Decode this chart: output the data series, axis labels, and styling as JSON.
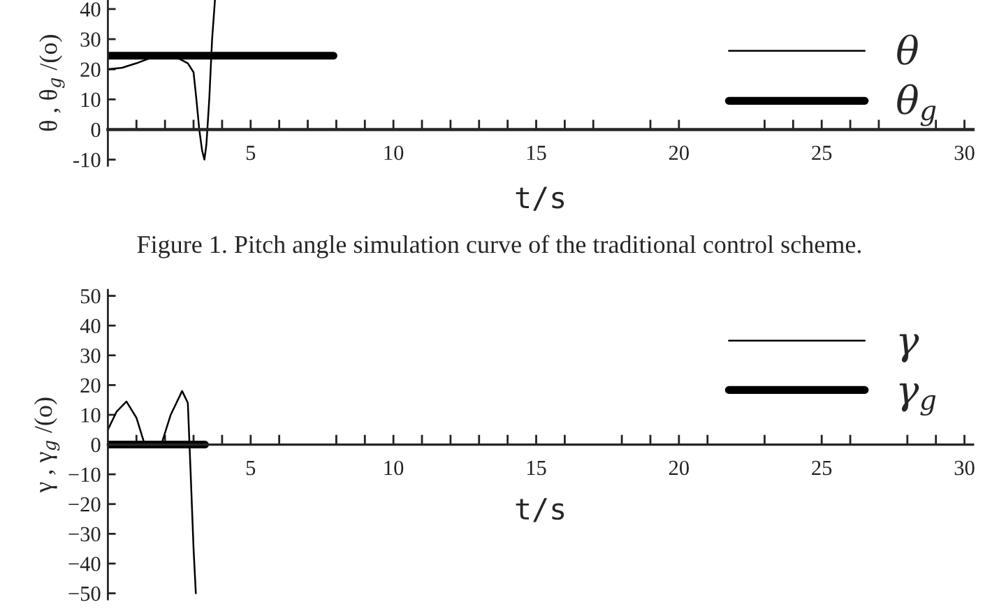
{
  "chart_data": [
    {
      "type": "line",
      "xlabel": "t/s",
      "ylabel": "θ , θ$_{g}$ /(o)",
      "legend": "top right",
      "grid": false,
      "marker": "none",
      "line_style": "solid",
      "xlim": [
        0,
        30.3
      ],
      "ylim": [
        -12,
        43
      ],
      "xticks": [
        {
          "value": 1,
          "label": null
        },
        {
          "value": 2,
          "label": null
        },
        {
          "value": 3,
          "label": null
        },
        {
          "value": 4,
          "label": null
        },
        5,
        {
          "value": 6,
          "label": null
        },
        {
          "value": 7,
          "label": null
        },
        {
          "value": 8,
          "label": null
        },
        {
          "value": 9,
          "label": null
        },
        10,
        {
          "value": 11,
          "label": null
        },
        {
          "value": 12,
          "label": null
        },
        {
          "value": 13,
          "label": null
        },
        {
          "value": 14,
          "label": null
        },
        15,
        {
          "value": 16,
          "label": null
        },
        {
          "value": 17,
          "label": null
        },
        {
          "value": 19,
          "label": null
        },
        20,
        {
          "value": 23,
          "label": null
        },
        {
          "value": 24,
          "label": null
        },
        25,
        {
          "value": 26,
          "label": null
        },
        {
          "value": 27,
          "label": null
        },
        {
          "value": 29,
          "label": null
        },
        30
      ],
      "yticks": [
        -10,
        0,
        10,
        20,
        30,
        40
      ],
      "series": [
        {
          "name": "θ",
          "color": "#000000",
          "x": [
            0,
            0.5,
            1,
            1.5,
            2,
            2.5,
            2.8,
            3.0,
            3.1,
            3.2,
            3.3,
            3.38,
            3.45,
            3.55,
            3.65,
            3.75
          ],
          "values": [
            20,
            20.5,
            22,
            23.8,
            24,
            23.5,
            22,
            19,
            10,
            0,
            -7,
            -10,
            -5,
            10,
            30,
            43
          ]
        },
        {
          "name": "θ$_{g}$",
          "color": "#000000",
          "x": [
            0,
            7.9
          ],
          "values": [
            24.5,
            24.5
          ]
        }
      ],
      "annotations": [
        "Figure 1. Pitch angle simulation curve of the traditional control scheme."
      ]
    },
    {
      "type": "line",
      "xlabel": "t/s",
      "ylabel": "γ , γ$_{g}$ /(o)",
      "legend": "top right",
      "grid": false,
      "marker": "none",
      "line_style": "solid",
      "xlim": [
        0,
        30.3
      ],
      "ylim": [
        -52,
        52
      ],
      "xticks": [
        {
          "value": 1,
          "label": null
        },
        {
          "value": 2,
          "label": null
        },
        {
          "value": 3,
          "label": null
        },
        {
          "value": 4,
          "label": null
        },
        5,
        {
          "value": 6,
          "label": null
        },
        {
          "value": 8,
          "label": null
        },
        {
          "value": 9,
          "label": null
        },
        10,
        {
          "value": 11,
          "label": null
        },
        {
          "value": 12,
          "label": null
        },
        {
          "value": 13,
          "label": null
        },
        {
          "value": 14,
          "label": null
        },
        15,
        {
          "value": 16,
          "label": null
        },
        {
          "value": 18,
          "label": null
        },
        {
          "value": 19,
          "label": null
        },
        20,
        {
          "value": 21,
          "label": null
        },
        {
          "value": 23,
          "label": null
        },
        25,
        {
          "value": 26,
          "label": null
        },
        {
          "value": 28,
          "label": null
        },
        {
          "value": 29,
          "label": null
        },
        30
      ],
      "yticks": [
        {
          "value": -50,
          "label": "−50"
        },
        {
          "value": -40,
          "label": "−40"
        },
        {
          "value": -30,
          "label": "−30"
        },
        {
          "value": -20,
          "label": "−20"
        },
        {
          "value": -10,
          "label": "−10"
        },
        0,
        10,
        20,
        30,
        40,
        50
      ],
      "series": [
        {
          "name": "γ",
          "color": "#000000",
          "x": [
            0,
            0.3,
            0.65,
            1.0,
            1.29,
            1.5,
            1.87,
            2.2,
            2.6,
            2.8,
            2.9,
            3.0,
            3.08
          ],
          "values": [
            5,
            11,
            14.5,
            9,
            0,
            -1,
            0,
            10,
            18,
            14,
            -10,
            -35,
            -50
          ]
        },
        {
          "name": "γ$_{g}$",
          "color": "#000000",
          "x": [
            0,
            3.4
          ],
          "values": [
            0,
            0
          ]
        }
      ]
    }
  ]
}
